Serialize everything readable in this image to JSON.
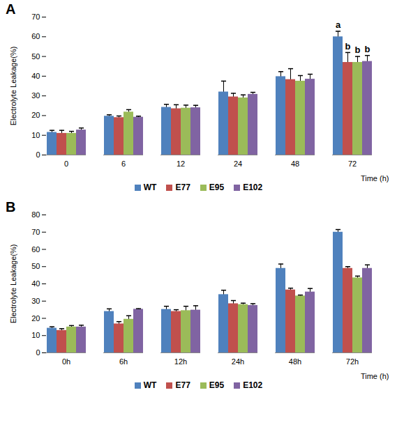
{
  "chart_data": [
    {
      "type": "bar",
      "panel": "A",
      "ylabel": "Electrolyte Leakage(%)",
      "xlabel": "Time (h)",
      "categories": [
        "0",
        "6",
        "12",
        "24",
        "48",
        "72"
      ],
      "ylim": [
        0,
        70
      ],
      "yticks": [
        0,
        10,
        20,
        30,
        40,
        50,
        60,
        70
      ],
      "series": [
        {
          "name": "WT",
          "color": "#4f81bd",
          "values": [
            11.5,
            19.7,
            24.2,
            32,
            39.8,
            60
          ],
          "errors": [
            1,
            0.7,
            1.5,
            5.5,
            2.5,
            2.8
          ]
        },
        {
          "name": "E77",
          "color": "#c0504d",
          "values": [
            11,
            19,
            23.5,
            29.5,
            38.3,
            47
          ],
          "errors": [
            1.5,
            0.8,
            2,
            1.8,
            5.5,
            5
          ]
        },
        {
          "name": "E95",
          "color": "#9bbb59",
          "values": [
            11,
            21.8,
            23.8,
            29,
            37.5,
            47
          ],
          "errors": [
            1,
            1.2,
            1.5,
            1.5,
            2.8,
            3
          ]
        },
        {
          "name": "E102",
          "color": "#8064a2",
          "values": [
            12.7,
            19.2,
            24,
            30.8,
            38.5,
            47.5
          ],
          "errors": [
            1,
            0.5,
            1.2,
            1,
            2.5,
            3
          ]
        }
      ],
      "annotations": [
        {
          "category": "72",
          "series": "WT",
          "text": "a"
        },
        {
          "category": "72",
          "series": "E77",
          "text": "b"
        },
        {
          "category": "72",
          "series": "E95",
          "text": "b"
        },
        {
          "category": "72",
          "series": "E102",
          "text": "b"
        }
      ]
    },
    {
      "type": "bar",
      "panel": "B",
      "ylabel": "Electrolyte Leakage(%)",
      "xlabel": "Time (h)",
      "categories": [
        "0h",
        "6h",
        "12h",
        "24h",
        "48h",
        "72h"
      ],
      "ylim": [
        0,
        80
      ],
      "yticks": [
        0,
        10,
        20,
        30,
        40,
        50,
        60,
        70,
        80
      ],
      "series": [
        {
          "name": "WT",
          "color": "#4f81bd",
          "values": [
            14.3,
            24,
            25.2,
            33.8,
            49,
            70
          ],
          "errors": [
            0.8,
            1.5,
            1.8,
            2.5,
            2.5,
            1.5
          ]
        },
        {
          "name": "E77",
          "color": "#c0504d",
          "values": [
            13,
            16.8,
            24,
            28.5,
            36.5,
            49
          ],
          "errors": [
            1,
            1.3,
            1,
            1.8,
            1,
            1
          ]
        },
        {
          "name": "E95",
          "color": "#9bbb59",
          "values": [
            15,
            19.5,
            24.5,
            28,
            33,
            43.5
          ],
          "errors": [
            0.8,
            2,
            2.5,
            0.8,
            0.5,
            1
          ]
        },
        {
          "name": "E102",
          "color": "#8064a2",
          "values": [
            15,
            25.3,
            24.8,
            27.5,
            35.3,
            49
          ],
          "errors": [
            1,
            0.3,
            2.5,
            1,
            2,
            2
          ]
        }
      ]
    }
  ]
}
